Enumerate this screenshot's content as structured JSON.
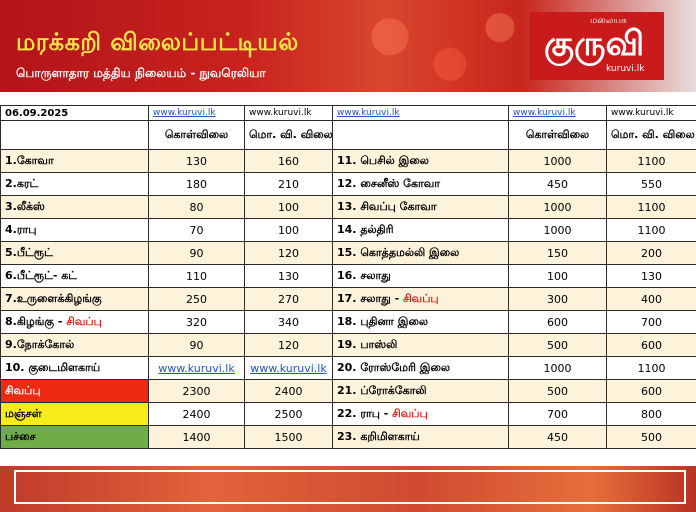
{
  "header": {
    "title": "மரக்கறி விலைப்பட்டியல்",
    "subtitle": "பொருளாதார மத்திய நிலையம் - நுவரெலியா",
    "logo_small": "மலையக",
    "logo_big": "குருவி",
    "logo_url": "kuruvi.lk"
  },
  "date": "06.09.2025",
  "site_links": [
    "www.kuruvi.lk",
    "www.kuruvi.lk",
    "www.kuruvi.lk",
    "www.kuruvi.lk",
    "www.kuruvi.lk"
  ],
  "columns": {
    "wholesale": "கொள்விலை",
    "retail": "மொ. வி. விலை"
  },
  "left_rows": [
    {
      "name": "1.கோவா",
      "w": "130",
      "r": "160"
    },
    {
      "name": "2.கரட்",
      "w": "180",
      "r": "210"
    },
    {
      "name": "3.லீக்ஸ்",
      "w": "80",
      "r": "100"
    },
    {
      "name": "4.ராபு",
      "w": "70",
      "r": "100"
    },
    {
      "name": "5.பீட்ரூட்",
      "w": "90",
      "r": "120"
    },
    {
      "name": "6.பீட்ரூட்- கட்",
      "w": "110",
      "r": "130"
    },
    {
      "name": "7.உருளைக்கிழங்கு",
      "w": "250",
      "r": "270"
    },
    {
      "name": "8.கிழங்கு - ",
      "tag": "சிவப்பு",
      "w": "320",
      "r": "340"
    },
    {
      "name": "9.நோக்கோல்",
      "w": "90",
      "r": "120"
    },
    {
      "name": "10. குடைமிளகாய்",
      "w": "www.kuruvi.lk",
      "r": "www.kuruvi.lk"
    },
    {
      "name": "சிவப்பு",
      "w": "2300",
      "r": "2400"
    },
    {
      "name": "மஞ்சள்",
      "w": "2400",
      "r": "2500"
    },
    {
      "name": "பச்சை",
      "w": "1400",
      "r": "1500"
    }
  ],
  "right_rows": [
    {
      "name": "11. பெசில் இலை",
      "w": "1000",
      "r": "1100"
    },
    {
      "name": "12. சைனீஸ் கோவா",
      "w": "450",
      "r": "550"
    },
    {
      "name": "13. சிவப்பு கோவா",
      "w": "1000",
      "r": "1100"
    },
    {
      "name": "14. தல்திரி",
      "w": "1000",
      "r": "1100"
    },
    {
      "name": "15. கொத்தமல்லி இலை",
      "w": "150",
      "r": "200"
    },
    {
      "name": "16. சலாது",
      "w": "100",
      "r": "130"
    },
    {
      "name": "17. சலாது - ",
      "tag": "சிவப்பு",
      "w": "300",
      "r": "400"
    },
    {
      "name": "18. புதினா இலை",
      "w": "600",
      "r": "700"
    },
    {
      "name": "19. பாஸ்லி",
      "w": "500",
      "r": "600"
    },
    {
      "name": "20. ரோஸ்மேரி இலை",
      "w": "1000",
      "r": "1100"
    },
    {
      "name": "21. ப்ரோக்கோலி",
      "w": "500",
      "r": "600"
    },
    {
      "name": "22. ராபு - ",
      "tag": "சிவப்பு",
      "w": "700",
      "r": "800"
    },
    {
      "name": "23. கறிமிளகாய்",
      "w": "450",
      "r": "500"
    }
  ]
}
